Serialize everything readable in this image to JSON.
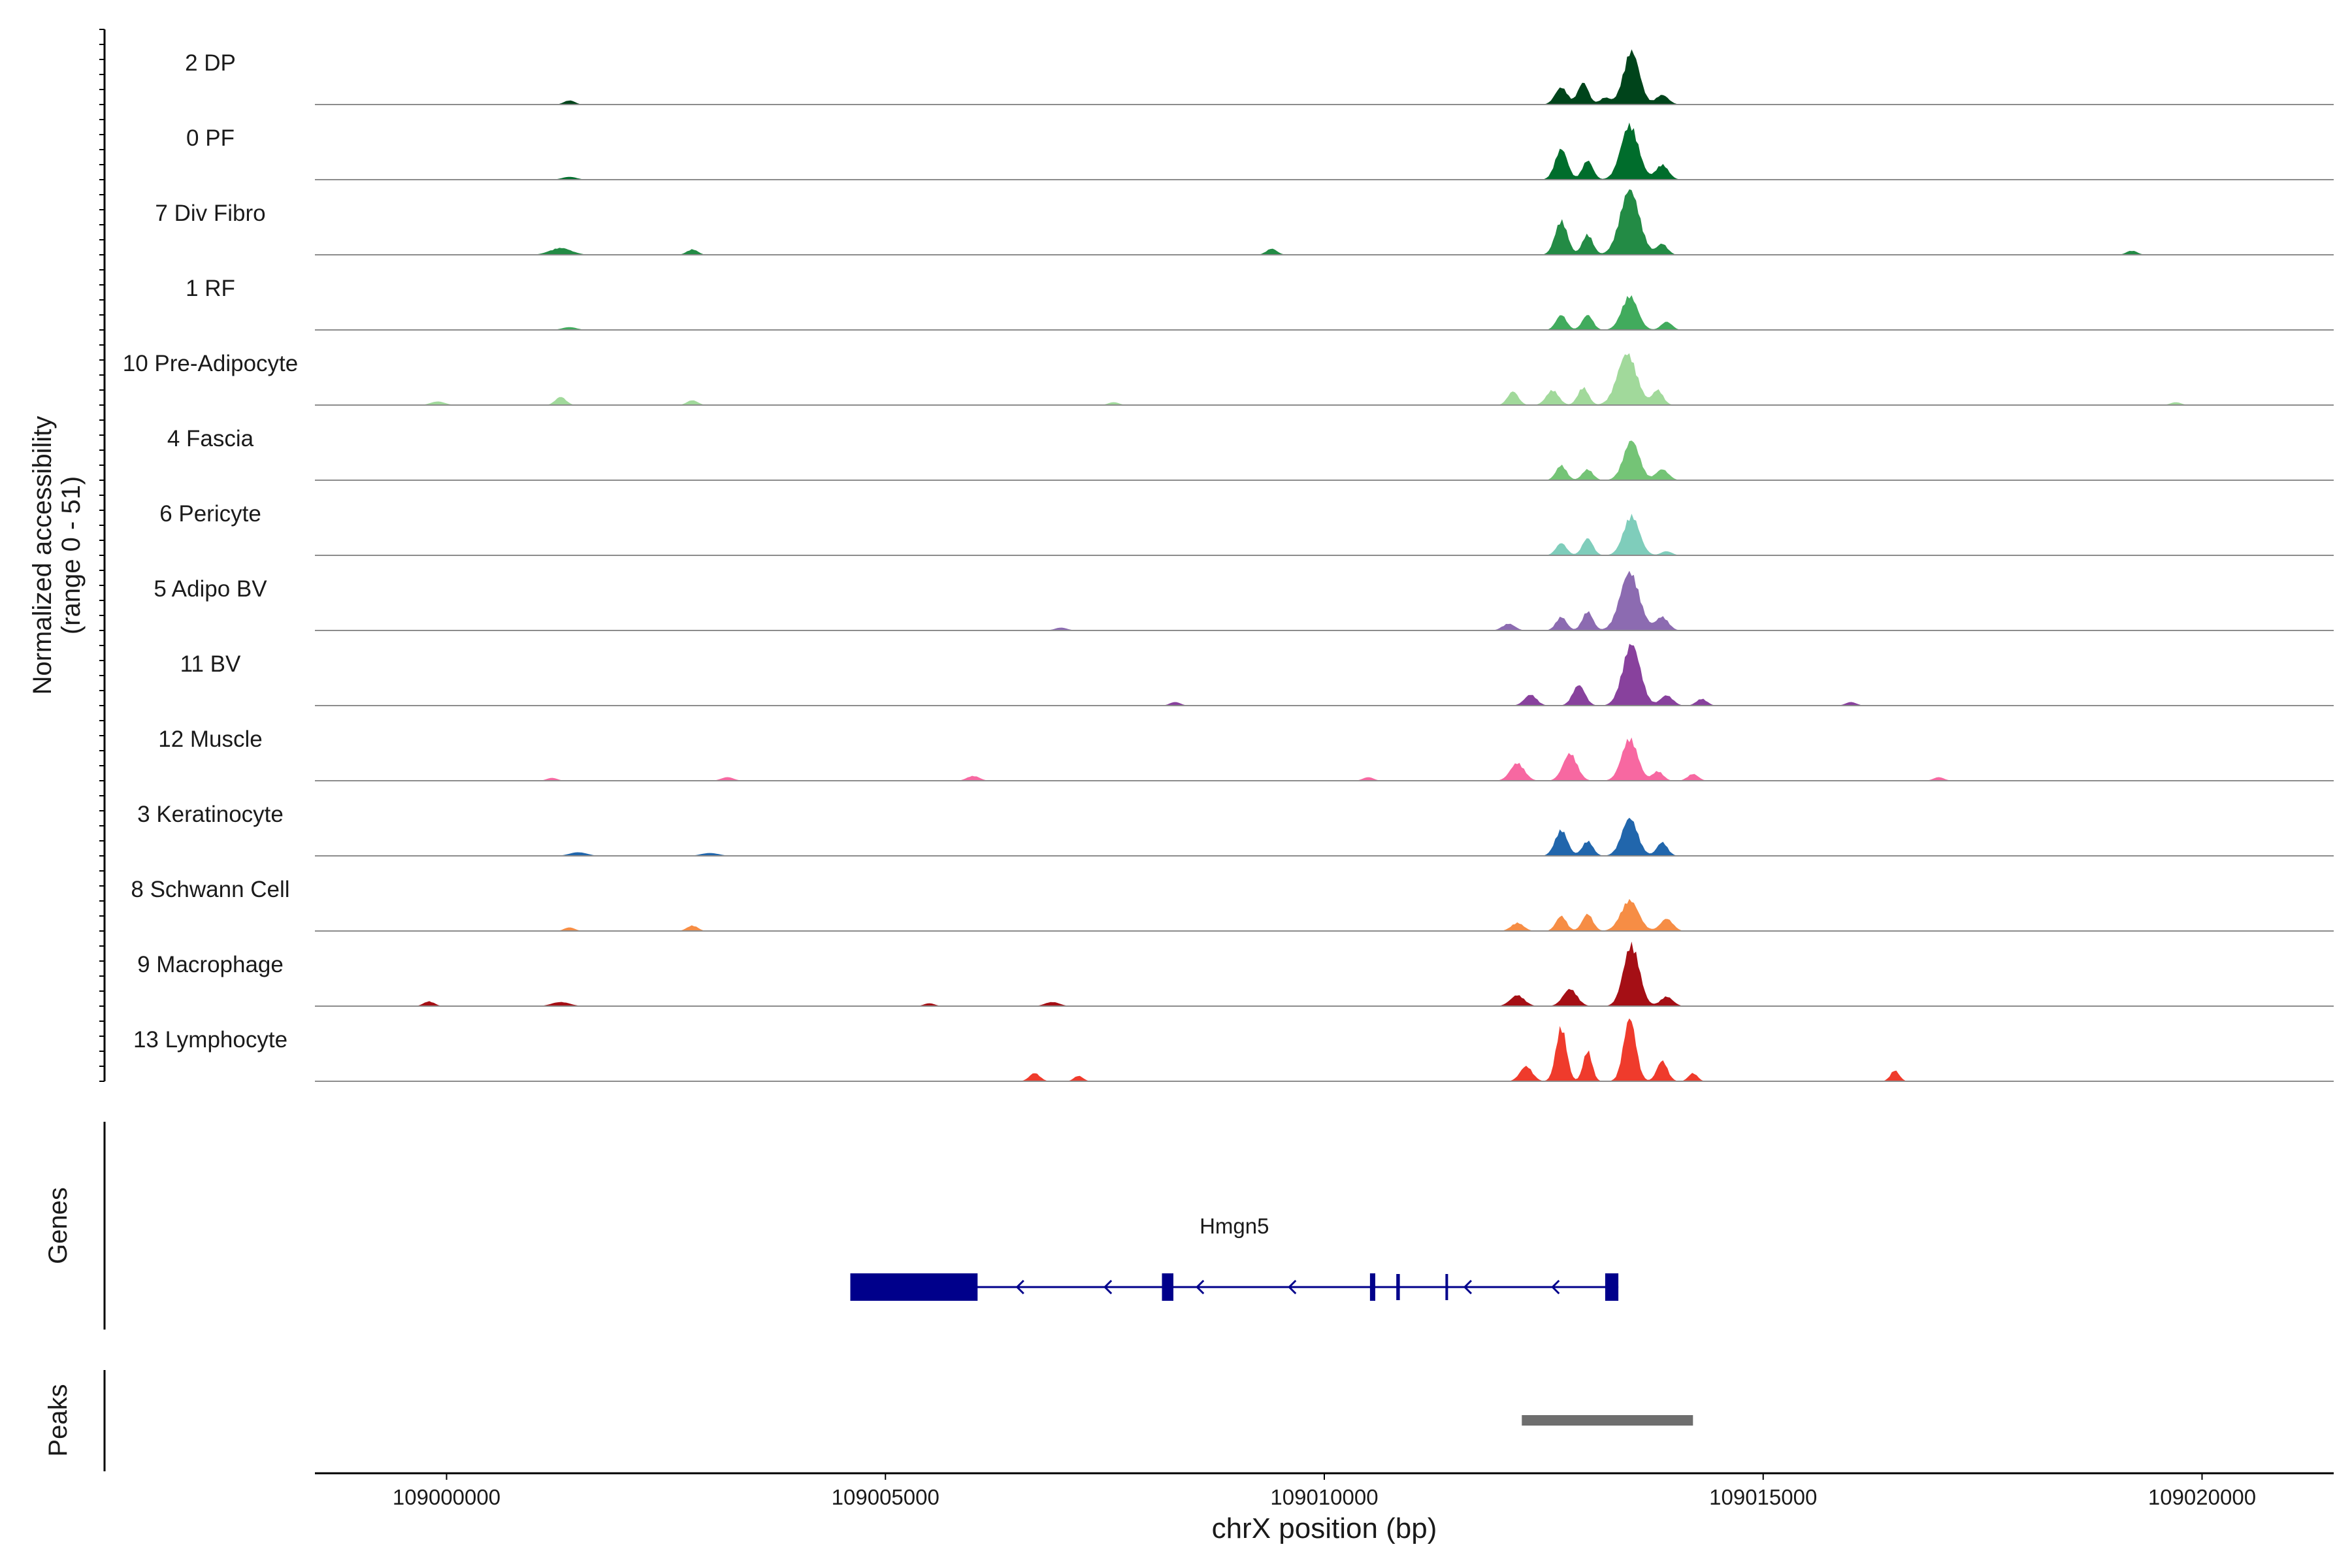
{
  "chart_data": {
    "type": "area",
    "title": "",
    "ylabel_line1": "Normalized accessibility",
    "ylabel_line2": "(range 0 - 51)",
    "xlabel": "chrX position (bp)",
    "xlim": [
      108998500,
      109021500
    ],
    "ylim": [
      0,
      51
    ],
    "xticks": [
      {
        "value": 109000000,
        "label": "109000000"
      },
      {
        "value": 109005000,
        "label": "109005000"
      },
      {
        "value": 109010000,
        "label": "109010000"
      },
      {
        "value": 109015000,
        "label": "109015000"
      },
      {
        "value": 109020000,
        "label": "109020000"
      }
    ],
    "tracks": [
      {
        "name": "2 DP",
        "color": "#00441b",
        "scale": 1.0,
        "peaks": [
          [
            109013500,
            0.78,
            90
          ],
          [
            109012700,
            0.25,
            70
          ],
          [
            109012950,
            0.32,
            60
          ],
          [
            109013200,
            0.1,
            60
          ],
          [
            109013850,
            0.14,
            70
          ],
          [
            109001400,
            0.06,
            60
          ]
        ]
      },
      {
        "name": "0 PF",
        "color": "#006d2c",
        "scale": 1.0,
        "peaks": [
          [
            109013480,
            0.8,
            100
          ],
          [
            109012700,
            0.45,
            70
          ],
          [
            109013000,
            0.28,
            60
          ],
          [
            109013850,
            0.22,
            70
          ],
          [
            109001400,
            0.04,
            80
          ]
        ]
      },
      {
        "name": "7 Div Fibro",
        "color": "#238b45",
        "scale": 1.0,
        "peaks": [
          [
            109013480,
            0.95,
            110
          ],
          [
            109012700,
            0.5,
            70
          ],
          [
            109013000,
            0.3,
            60
          ],
          [
            109013850,
            0.16,
            60
          ],
          [
            109001300,
            0.1,
            120
          ],
          [
            109002800,
            0.08,
            60
          ],
          [
            109009400,
            0.09,
            60
          ],
          [
            109019200,
            0.06,
            60
          ]
        ]
      },
      {
        "name": "1 RF",
        "color": "#41ab5d",
        "scale": 1.0,
        "peaks": [
          [
            109013480,
            0.5,
            90
          ],
          [
            109012700,
            0.22,
            60
          ],
          [
            109013000,
            0.22,
            60
          ],
          [
            109013900,
            0.12,
            60
          ],
          [
            109001400,
            0.04,
            80
          ]
        ]
      },
      {
        "name": "10 Pre-Adipocyte",
        "color": "#a1d99b",
        "scale": 1.0,
        "peaks": [
          [
            109013450,
            0.75,
            110
          ],
          [
            109012600,
            0.22,
            70
          ],
          [
            109012950,
            0.26,
            60
          ],
          [
            109013800,
            0.22,
            60
          ],
          [
            109012150,
            0.2,
            60
          ],
          [
            109001300,
            0.12,
            60
          ],
          [
            108999900,
            0.05,
            80
          ],
          [
            109002800,
            0.07,
            60
          ],
          [
            109007600,
            0.04,
            60
          ],
          [
            109019700,
            0.04,
            60
          ]
        ]
      },
      {
        "name": "4 Fascia",
        "color": "#74c476",
        "scale": 1.0,
        "peaks": [
          [
            109013500,
            0.58,
            90
          ],
          [
            109012700,
            0.22,
            60
          ],
          [
            109013000,
            0.16,
            60
          ],
          [
            109013850,
            0.16,
            70
          ]
        ]
      },
      {
        "name": "6 Pericyte",
        "color": "#7fcdbb",
        "scale": 1.0,
        "peaks": [
          [
            109013500,
            0.58,
            90
          ],
          [
            109012700,
            0.18,
            60
          ],
          [
            109013000,
            0.25,
            60
          ],
          [
            109013900,
            0.06,
            60
          ]
        ]
      },
      {
        "name": "5 Adipo BV",
        "color": "#8c6bb1",
        "scale": 1.0,
        "peaks": [
          [
            109013480,
            0.85,
            110
          ],
          [
            109012700,
            0.2,
            60
          ],
          [
            109013000,
            0.28,
            60
          ],
          [
            109013850,
            0.2,
            70
          ],
          [
            109012100,
            0.1,
            70
          ],
          [
            109007000,
            0.04,
            70
          ]
        ]
      },
      {
        "name": "11 BV",
        "color": "#88419d",
        "scale": 1.0,
        "peaks": [
          [
            109013500,
            0.9,
            100
          ],
          [
            109012900,
            0.3,
            70
          ],
          [
            109012350,
            0.16,
            70
          ],
          [
            109013900,
            0.15,
            70
          ],
          [
            109014300,
            0.1,
            60
          ],
          [
            109008300,
            0.05,
            60
          ],
          [
            109016000,
            0.05,
            60
          ]
        ]
      },
      {
        "name": "12 Muscle",
        "color": "#f768a1",
        "scale": 1.0,
        "peaks": [
          [
            109013480,
            0.62,
            90
          ],
          [
            109012800,
            0.4,
            80
          ],
          [
            109012200,
            0.26,
            80
          ],
          [
            109013800,
            0.14,
            60
          ],
          [
            109014200,
            0.1,
            60
          ],
          [
            109006000,
            0.07,
            70
          ],
          [
            109003200,
            0.05,
            70
          ],
          [
            109001200,
            0.04,
            60
          ],
          [
            109010500,
            0.05,
            60
          ],
          [
            109017000,
            0.05,
            60
          ]
        ]
      },
      {
        "name": "3 Keratinocyte",
        "color": "#2166ac",
        "scale": 1.0,
        "peaks": [
          [
            109013480,
            0.55,
            90
          ],
          [
            109012700,
            0.38,
            70
          ],
          [
            109013000,
            0.22,
            60
          ],
          [
            109013850,
            0.2,
            60
          ],
          [
            109001500,
            0.05,
            100
          ],
          [
            109003000,
            0.04,
            100
          ]
        ]
      },
      {
        "name": "8 Schwann Cell",
        "color": "#f68d45",
        "scale": 1.0,
        "peaks": [
          [
            109013480,
            0.45,
            100
          ],
          [
            109012700,
            0.22,
            60
          ],
          [
            109013000,
            0.25,
            60
          ],
          [
            109013900,
            0.18,
            70
          ],
          [
            109012200,
            0.12,
            70
          ],
          [
            109002800,
            0.08,
            60
          ],
          [
            109001400,
            0.05,
            60
          ]
        ]
      },
      {
        "name": "9 Macrophage",
        "color": "#a50f15",
        "scale": 1.0,
        "peaks": [
          [
            109013500,
            0.9,
            90
          ],
          [
            109012800,
            0.25,
            80
          ],
          [
            109012200,
            0.16,
            80
          ],
          [
            109013900,
            0.14,
            70
          ],
          [
            108999800,
            0.07,
            60
          ],
          [
            109001300,
            0.06,
            100
          ],
          [
            109006900,
            0.06,
            80
          ],
          [
            109005500,
            0.04,
            60
          ]
        ]
      },
      {
        "name": "13 Lymphocyte",
        "color": "#ef3b2c",
        "scale": 1.0,
        "peaks": [
          [
            109013480,
            0.92,
            70
          ],
          [
            109012700,
            0.8,
            60
          ],
          [
            109013000,
            0.45,
            50
          ],
          [
            109013850,
            0.3,
            60
          ],
          [
            109012300,
            0.22,
            70
          ],
          [
            109014200,
            0.12,
            50
          ],
          [
            109006700,
            0.12,
            60
          ],
          [
            109007200,
            0.08,
            50
          ],
          [
            109016500,
            0.16,
            50
          ]
        ]
      }
    ],
    "genes_label": "Genes",
    "gene": {
      "name": "Hmgn5",
      "start": 109004600,
      "end": 109013350,
      "strand": "-",
      "exons": [
        {
          "start": 109004600,
          "end": 109006050,
          "thick": true
        },
        {
          "start": 109008150,
          "end": 109008280,
          "thick": true
        },
        {
          "start": 109010520,
          "end": 109010580,
          "thick": true
        },
        {
          "start": 109010820,
          "end": 109010860,
          "thick": false
        },
        {
          "start": 109011380,
          "end": 109011410,
          "thick": false
        },
        {
          "start": 109013200,
          "end": 109013350,
          "thick": true
        }
      ],
      "arrows": [
        109006500,
        109007500,
        109008550,
        109009600,
        109011600,
        109012600
      ],
      "color": "#00008b"
    },
    "peaks_label": "Peaks",
    "peak_regions": [
      {
        "start": 109012250,
        "end": 109014200,
        "color": "#6e6e6e"
      }
    ]
  }
}
